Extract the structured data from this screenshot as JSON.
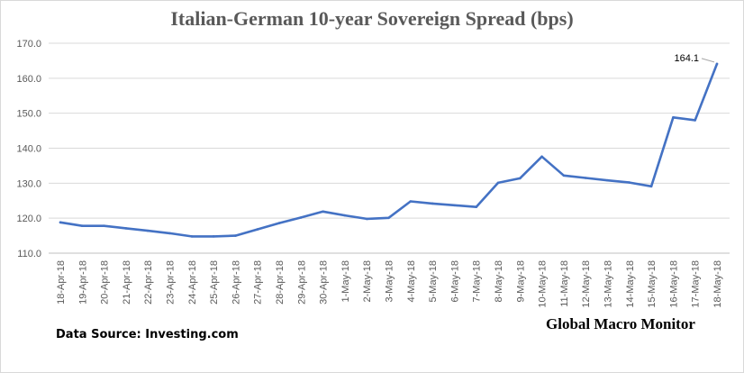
{
  "chart_data": {
    "type": "line",
    "title": "Italian-German 10-year Sovereign Spread (bps)",
    "xlabel": "",
    "ylabel": "",
    "ylim": [
      110,
      170
    ],
    "yticks": [
      "110.0",
      "120.0",
      "130.0",
      "140.0",
      "150.0",
      "160.0",
      "170.0"
    ],
    "grid": true,
    "categories": [
      "18-Apr-18",
      "19-Apr-18",
      "20-Apr-18",
      "21-Apr-18",
      "22-Apr-18",
      "23-Apr-18",
      "24-Apr-18",
      "25-Apr-18",
      "26-Apr-18",
      "27-Apr-18",
      "28-Apr-18",
      "29-Apr-18",
      "30-Apr-18",
      "1-May-18",
      "2-May-18",
      "3-May-18",
      "4-May-18",
      "5-May-18",
      "6-May-18",
      "7-May-18",
      "8-May-18",
      "9-May-18",
      "10-May-18",
      "11-May-18",
      "12-May-18",
      "13-May-18",
      "14-May-18",
      "15-May-18",
      "16-May-18",
      "17-May-18",
      "18-May-18"
    ],
    "values": [
      118.8,
      117.8,
      117.8,
      117.1,
      116.4,
      115.7,
      114.8,
      114.8,
      115.0,
      116.8,
      118.6,
      120.2,
      121.9,
      120.8,
      119.8,
      120.1,
      124.8,
      124.2,
      123.7,
      123.2,
      130.1,
      131.4,
      137.6,
      132.2,
      131.5,
      130.8,
      130.2,
      129.1,
      148.8,
      148.0,
      164.1
    ],
    "series_color": "#4472c4",
    "annotations": [
      {
        "category": "18-May-18",
        "label": "164.1"
      }
    ]
  },
  "footer": {
    "source": "Data Source: Investing.com",
    "brand": "Global Macro Monitor"
  }
}
